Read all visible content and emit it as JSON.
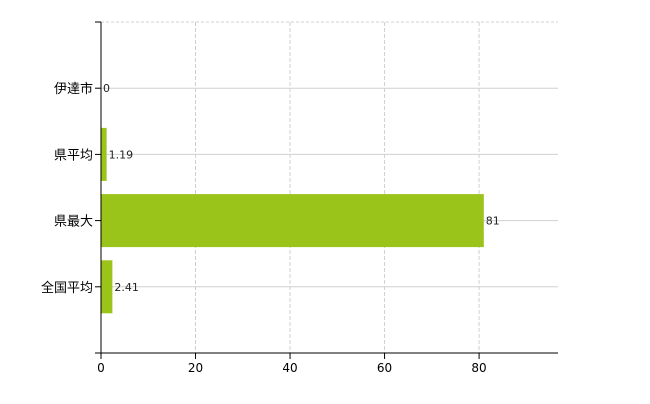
{
  "chart_data": {
    "type": "bar",
    "orientation": "horizontal",
    "title": "",
    "xlabel": "",
    "ylabel": "",
    "categories": [
      "伊達市",
      "県平均",
      "県最大",
      "全国平均"
    ],
    "values": [
      0,
      1.19,
      81,
      2.41
    ],
    "data_labels": [
      "0",
      "1.19",
      "81",
      "2.41"
    ],
    "xlim": [
      0,
      96.7
    ],
    "xticks": [
      0,
      20,
      40,
      60,
      80
    ],
    "xtick_labels": [
      "0",
      "20",
      "40",
      "60",
      "80"
    ],
    "grid": true,
    "legend": "none",
    "colors": {
      "bar": "#9ac41a",
      "grid": "#d0d0d0",
      "axis": "#000000"
    }
  }
}
